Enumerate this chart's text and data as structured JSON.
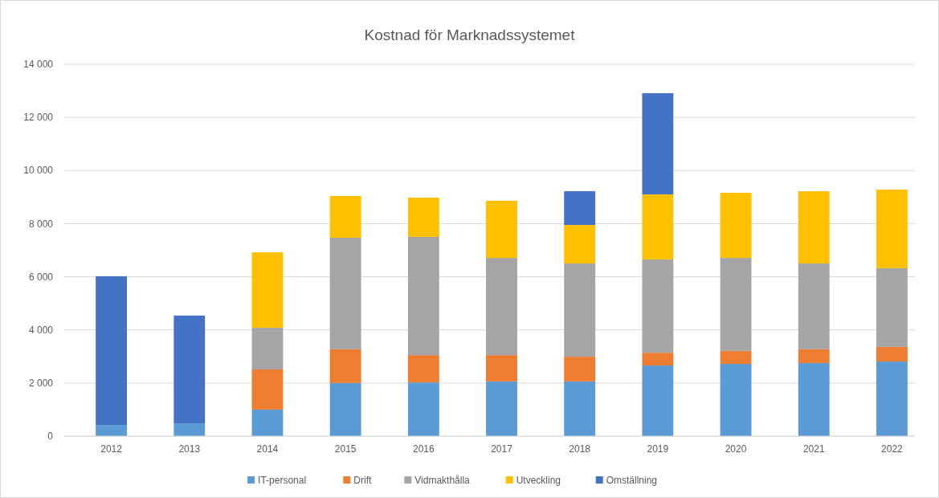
{
  "chart_data": {
    "type": "bar",
    "title": "Kostnad för Marknadssystemet",
    "stacked": true,
    "categories": [
      "2012",
      "2013",
      "2014",
      "2015",
      "2016",
      "2017",
      "2018",
      "2019",
      "2020",
      "2021",
      "2022"
    ],
    "series": [
      {
        "name": "IT-personal",
        "color": "#5b9bd5",
        "values": [
          420,
          480,
          1000,
          2000,
          2020,
          2060,
          2060,
          2660,
          2720,
          2750,
          2810
        ]
      },
      {
        "name": "Drift",
        "color": "#ed7d31",
        "values": [
          0,
          0,
          1510,
          1270,
          1030,
          990,
          930,
          480,
          490,
          520,
          550
        ]
      },
      {
        "name": "Vidmakthålla",
        "color": "#a5a5a5",
        "values": [
          0,
          0,
          1570,
          4200,
          4450,
          3660,
          3510,
          3510,
          3500,
          3230,
          2960
        ]
      },
      {
        "name": "Utveckling",
        "color": "#ffc000",
        "values": [
          0,
          0,
          2840,
          1570,
          1480,
          2150,
          1450,
          2450,
          2450,
          2720,
          2960
        ]
      },
      {
        "name": "Omställning",
        "color": "#4472c4",
        "values": [
          5600,
          4060,
          0,
          0,
          0,
          0,
          1270,
          3810,
          0,
          0,
          0
        ]
      }
    ],
    "ylim": [
      0,
      14000
    ],
    "yticks": [
      0,
      {
        "value": 2000,
        "label": "2 000"
      },
      {
        "value": 4000,
        "label": "4 000"
      },
      {
        "value": 6000,
        "label": "6 000"
      },
      {
        "value": 8000,
        "label": "8 000"
      },
      {
        "value": 10000,
        "label": "10 000"
      },
      {
        "value": 12000,
        "label": "12 000"
      },
      {
        "value": 14000,
        "label": "14 000"
      }
    ],
    "grid": "y",
    "legend": "bottom"
  }
}
